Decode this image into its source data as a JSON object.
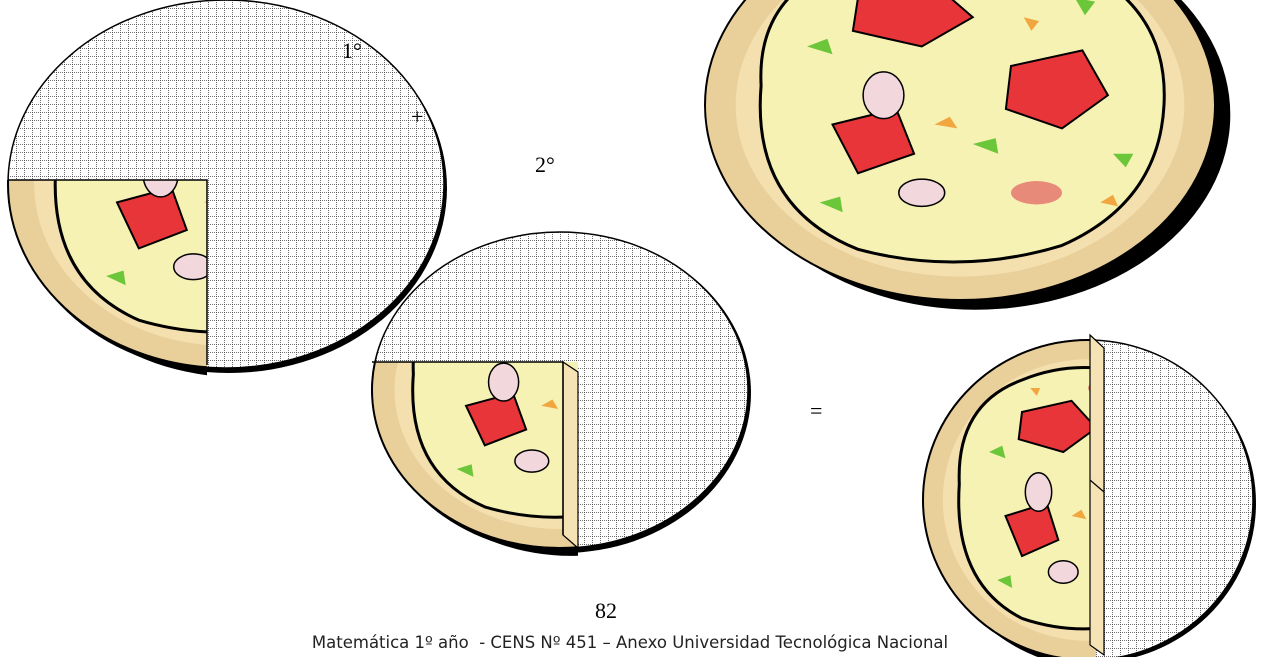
{
  "labels": {
    "first": "1°",
    "plus": "+",
    "second": "2°",
    "equals": "="
  },
  "footer": {
    "page_number": "82",
    "text": "Matemática 1º año  - CENS Nº 451 – Anexo Universidad Tecnológica Nacional"
  }
}
